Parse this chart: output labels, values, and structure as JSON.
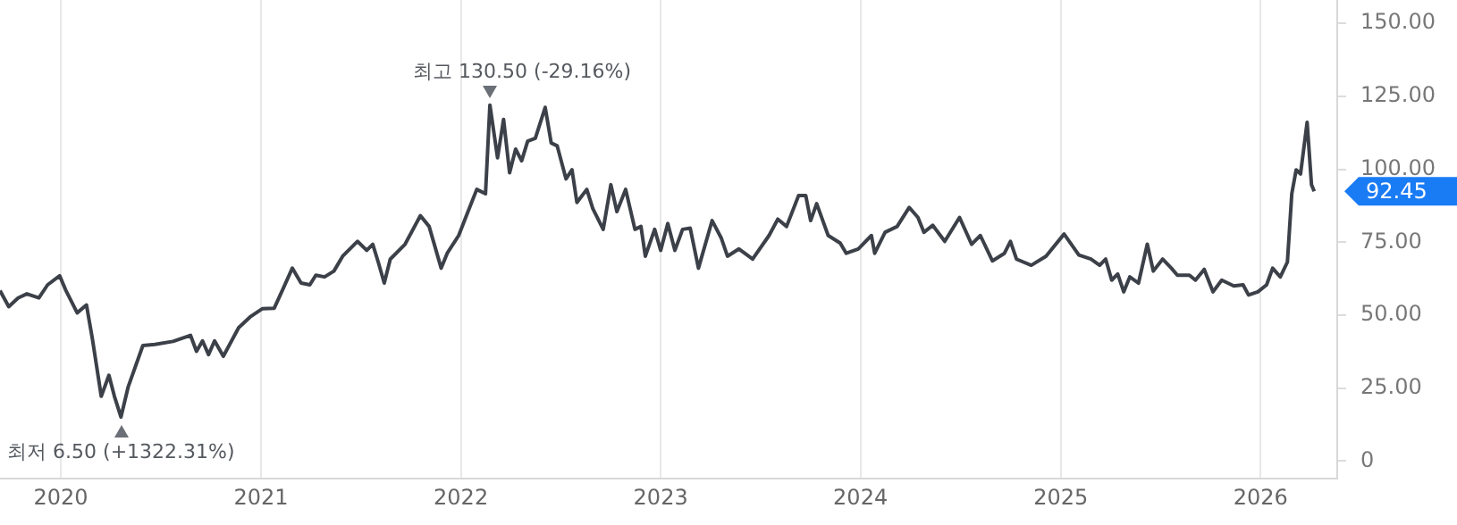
{
  "chart_data": {
    "type": "line",
    "x": [
      "2019-09-12",
      "2019-09-28",
      "2019-10-15",
      "2019-10-31",
      "2019-11-22",
      "2019-12-08",
      "2019-12-30",
      "2020-01-10",
      "2020-01-31",
      "2020-02-17",
      "2020-02-28",
      "2020-03-15",
      "2020-03-29",
      "2020-04-08",
      "2020-04-20",
      "2020-05-03",
      "2020-05-30",
      "2020-06-21",
      "2020-07-24",
      "2020-08-25",
      "2020-09-05",
      "2020-09-16",
      "2020-09-27",
      "2020-10-08",
      "2020-10-24",
      "2020-11-21",
      "2020-12-12",
      "2021-01-03",
      "2021-01-25",
      "2021-02-10",
      "2021-02-27",
      "2021-03-15",
      "2021-03-31",
      "2021-04-11",
      "2021-04-27",
      "2021-05-14",
      "2021-05-30",
      "2021-06-26",
      "2021-07-13",
      "2021-07-24",
      "2021-08-03",
      "2021-08-14",
      "2021-08-25",
      "2021-09-21",
      "2021-10-19",
      "2021-11-04",
      "2021-11-26",
      "2021-12-07",
      "2021-12-28",
      "2022-01-14",
      "2022-01-30",
      "2022-02-15",
      "2022-02-23",
      "2022-03-09",
      "2022-03-20",
      "2022-03-31",
      "2022-04-11",
      "2022-04-22",
      "2022-05-03",
      "2022-05-17",
      "2022-06-04",
      "2022-06-15",
      "2022-06-26",
      "2022-07-12",
      "2022-07-23",
      "2022-08-01",
      "2022-08-19",
      "2022-08-30",
      "2022-09-18",
      "2022-10-02",
      "2022-10-13",
      "2022-10-29",
      "2022-11-15",
      "2022-11-26",
      "2022-12-04",
      "2022-12-21",
      "2023-01-01",
      "2023-01-14",
      "2023-01-27",
      "2023-02-10",
      "2023-02-24",
      "2023-03-11",
      "2023-04-05",
      "2023-04-22",
      "2023-05-03",
      "2023-05-24",
      "2023-06-18",
      "2023-07-18",
      "2023-08-03",
      "2023-08-19",
      "2023-09-10",
      "2023-09-23",
      "2023-10-02",
      "2023-10-13",
      "2023-11-03",
      "2023-11-25",
      "2023-12-06",
      "2023-12-28",
      "2024-01-21",
      "2024-01-27",
      "2024-02-15",
      "2024-03-08",
      "2024-03-30",
      "2024-04-15",
      "2024-04-26",
      "2024-05-12",
      "2024-06-03",
      "2024-06-30",
      "2024-07-22",
      "2024-08-07",
      "2024-08-29",
      "2024-09-20",
      "2024-10-01",
      "2024-10-12",
      "2024-11-08",
      "2024-12-05",
      "2025-01-07",
      "2025-02-03",
      "2025-02-25",
      "2025-03-13",
      "2025-03-24",
      "2025-04-04",
      "2025-04-15",
      "2025-04-26",
      "2025-05-07",
      "2025-05-23",
      "2025-06-08",
      "2025-06-19",
      "2025-07-06",
      "2025-07-22",
      "2025-08-02",
      "2025-08-24",
      "2025-09-04",
      "2025-09-20",
      "2025-10-06",
      "2025-10-22",
      "2025-11-13",
      "2025-11-30",
      "2025-12-10",
      "2025-12-27",
      "2026-01-12",
      "2026-01-23",
      "2026-02-06",
      "2026-02-19",
      "2026-02-27",
      "2026-03-07",
      "2026-03-15",
      "2026-03-27",
      "2026-04-04",
      "2026-04-09"
    ],
    "series": [
      {
        "color": "#3c4048",
        "values": [
          58.4,
          52.9,
          55.9,
          57.3,
          55.9,
          60.4,
          63.5,
          58.6,
          50.8,
          53.5,
          41.6,
          22.2,
          29.4,
          22.2,
          15.1,
          25.3,
          39.6,
          40,
          41,
          43.1,
          37.6,
          41.2,
          36.5,
          41.2,
          35.9,
          45.7,
          49.4,
          52.2,
          52.4,
          59,
          66.1,
          61,
          60.4,
          63.7,
          63.1,
          65.1,
          70.2,
          75.3,
          72.2,
          74.3,
          68.2,
          61,
          69.2,
          74.3,
          84.1,
          80.4,
          66.1,
          71.2,
          77.3,
          85.5,
          93.1,
          91.6,
          122,
          103.9,
          117.1,
          98.8,
          106.9,
          102.9,
          109.6,
          110.6,
          121.2,
          109,
          108,
          96.7,
          99.8,
          88.6,
          93.1,
          86.5,
          79.4,
          94.7,
          85.5,
          93.1,
          79.4,
          80.4,
          70.2,
          79.4,
          72.2,
          81.4,
          72.2,
          79.4,
          79.8,
          66.1,
          82.4,
          76.3,
          70.2,
          72.7,
          69.2,
          77.3,
          82.9,
          80.4,
          91,
          91,
          82.4,
          88.2,
          77.3,
          74.7,
          71.2,
          72.7,
          77.3,
          71.2,
          78.4,
          80.4,
          86.9,
          83.5,
          78.4,
          80.8,
          75.3,
          83.5,
          74.3,
          77.3,
          68.6,
          71.2,
          75.3,
          69.2,
          67.1,
          70.2,
          77.8,
          70.6,
          69.2,
          67.1,
          69.2,
          62,
          64.1,
          58,
          63.1,
          61,
          74.3,
          65.1,
          69.2,
          66.1,
          63.7,
          63.7,
          62,
          65.7,
          58,
          62,
          60,
          60.4,
          56.9,
          58,
          60.4,
          66.1,
          63.1,
          68.2,
          91.6,
          99.8,
          98.4,
          116.1,
          94.7,
          92.45
        ]
      }
    ],
    "xlim": [
      "2019-09-12",
      "2026-05-21"
    ],
    "xticks": [
      {
        "value": "2020-01-01",
        "label": "2020"
      },
      {
        "value": "2021-01-01",
        "label": "2021"
      },
      {
        "value": "2022-01-01",
        "label": "2022"
      },
      {
        "value": "2023-01-01",
        "label": "2023"
      },
      {
        "value": "2024-01-01",
        "label": "2024"
      },
      {
        "value": "2025-01-01",
        "label": "2025"
      },
      {
        "value": "2026-01-01",
        "label": "2026"
      }
    ],
    "ylim": [
      -6,
      158
    ],
    "yticks": [
      0,
      {
        "value": 25,
        "label": "25.00"
      },
      {
        "value": 50,
        "label": "50.00"
      },
      {
        "value": 75,
        "label": "75.00"
      },
      {
        "value": 100,
        "label": "100.00"
      },
      {
        "value": 125,
        "label": "125.00"
      },
      {
        "value": 150,
        "label": "150.00"
      }
    ],
    "grid": "x",
    "legend": false,
    "marker": "none",
    "line_style": "solid",
    "annotations": [
      "최고 130.50 (-29.16%)",
      "최저 6.50 (+1322.31%)",
      "92.45"
    ]
  }
}
